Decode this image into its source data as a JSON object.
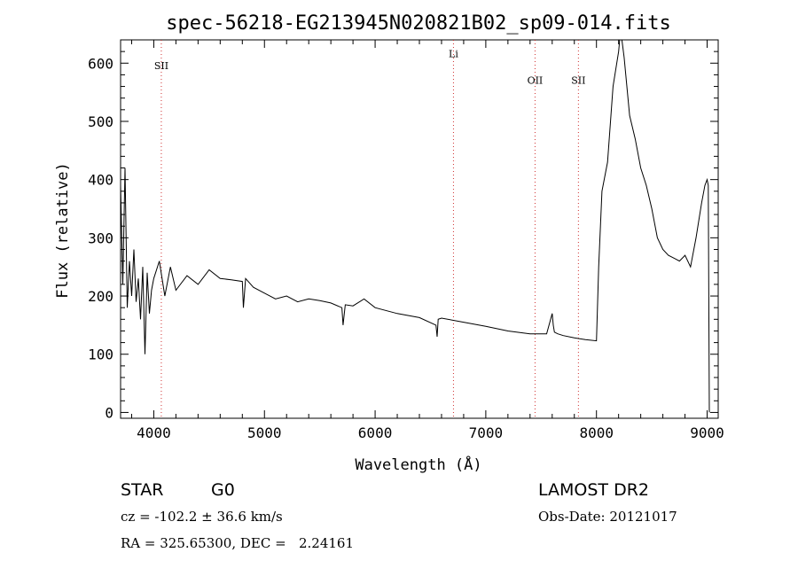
{
  "chart_data": {
    "type": "line",
    "title": "spec-56218-EG213945N020821B02_sp09-014.fits",
    "xlabel": "Wavelength (Å)",
    "ylabel": "Flux (relative)",
    "xlim": [
      3700,
      9100
    ],
    "ylim": [
      -10,
      640
    ],
    "x_ticks": [
      4000,
      5000,
      6000,
      7000,
      8000,
      9000
    ],
    "y_ticks": [
      0,
      100,
      200,
      300,
      400,
      500,
      600
    ],
    "grid": false,
    "line_color": "#000000",
    "marker_color": "#d03030",
    "spectral_lines": [
      {
        "label": "SII",
        "wavelength": 4068,
        "label_flux": 590
      },
      {
        "label": "Li",
        "wavelength": 6708,
        "label_flux": 610
      },
      {
        "label": "OII",
        "wavelength": 7445,
        "label_flux": 565
      },
      {
        "label": "SII",
        "wavelength": 7837,
        "label_flux": 565
      }
    ],
    "series": [
      {
        "x": [
          3700,
          3720,
          3740,
          3760,
          3780,
          3800,
          3820,
          3840,
          3860,
          3880,
          3900,
          3920,
          3940,
          3960,
          3980,
          4000,
          4050,
          4100,
          4150,
          4200,
          4300,
          4400,
          4500,
          4600,
          4700,
          4800,
          4810,
          4830,
          4900,
          5000,
          5100,
          5200,
          5300,
          5400,
          5500,
          5600,
          5700,
          5710,
          5730,
          5800,
          5900,
          6000,
          6200,
          6400,
          6550,
          6560,
          6570,
          6600,
          6800,
          7000,
          7200,
          7400,
          7550,
          7600,
          7610,
          7620,
          7650,
          7700,
          7800,
          7900,
          8000,
          8020,
          8050,
          8100,
          8150,
          8200,
          8210,
          8230,
          8250,
          8300,
          8350,
          8400,
          8450,
          8500,
          8550,
          8600,
          8650,
          8700,
          8750,
          8800,
          8850,
          8900,
          8950,
          8980,
          9000,
          9010,
          9020
        ],
        "y": [
          390,
          220,
          420,
          180,
          260,
          200,
          280,
          190,
          230,
          160,
          250,
          100,
          240,
          170,
          210,
          230,
          260,
          200,
          250,
          210,
          235,
          220,
          245,
          230,
          228,
          225,
          180,
          230,
          215,
          205,
          195,
          200,
          190,
          195,
          192,
          188,
          180,
          150,
          185,
          183,
          195,
          180,
          170,
          163,
          150,
          130,
          160,
          162,
          155,
          148,
          140,
          135,
          135,
          170,
          150,
          138,
          135,
          132,
          128,
          125,
          123,
          250,
          380,
          430,
          560,
          620,
          640,
          640,
          610,
          510,
          470,
          420,
          390,
          350,
          300,
          280,
          270,
          265,
          260,
          270,
          250,
          300,
          360,
          390,
          400,
          390,
          0
        ]
      }
    ]
  },
  "footer": {
    "class_label": "STAR",
    "subclass": "G0",
    "survey": "LAMOST DR2",
    "cz": "cz = -102.2 ± 36.6 km/s",
    "obs_date": "Obs-Date: 20121017",
    "coords": "RA = 325.65300, DEC =   2.24161"
  }
}
